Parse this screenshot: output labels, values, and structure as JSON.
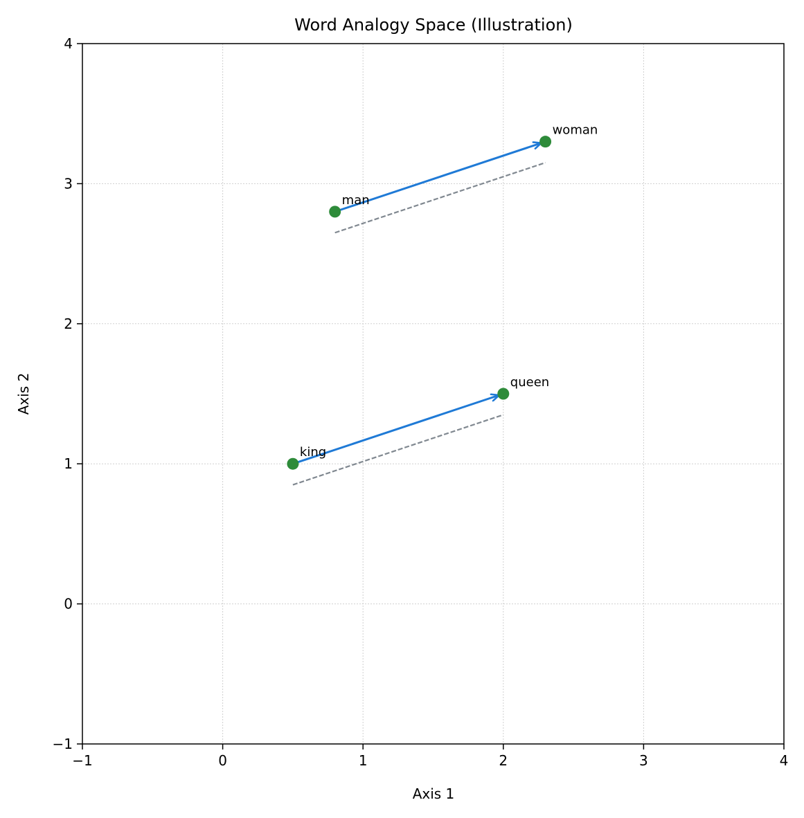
{
  "chart_data": {
    "type": "scatter",
    "title": "Word Analogy Space (Illustration)",
    "xlabel": "Axis 1",
    "ylabel": "Axis 2",
    "xlim": [
      -1,
      4
    ],
    "ylim": [
      -1,
      4
    ],
    "x_ticks": [
      -1,
      0,
      1,
      2,
      3,
      4
    ],
    "y_ticks": [
      -1,
      0,
      1,
      2,
      3,
      4
    ],
    "x_tick_labels": [
      "−1",
      "0",
      "1",
      "2",
      "3",
      "4"
    ],
    "y_tick_labels": [
      "−1",
      "0",
      "1",
      "2",
      "3",
      "4"
    ],
    "grid": true,
    "points": [
      {
        "label": "king",
        "x": 0.5,
        "y": 1.0
      },
      {
        "label": "queen",
        "x": 2.0,
        "y": 1.5
      },
      {
        "label": "man",
        "x": 0.8,
        "y": 2.8
      },
      {
        "label": "woman",
        "x": 2.3,
        "y": 3.3
      }
    ],
    "arrows": [
      {
        "from": [
          0.5,
          1.0
        ],
        "to": [
          2.0,
          1.5
        ]
      },
      {
        "from": [
          0.8,
          2.8
        ],
        "to": [
          2.3,
          3.3
        ]
      }
    ],
    "dashed_lines": [
      {
        "from": [
          0.5,
          0.85
        ],
        "to": [
          2.0,
          1.35
        ]
      },
      {
        "from": [
          0.8,
          2.65
        ],
        "to": [
          2.3,
          3.15
        ]
      }
    ],
    "colors": {
      "points": "#2e8b3a",
      "arrows": "#1f7ad6",
      "dashed": "#808890",
      "grid": "#d0d0d0",
      "axes": "#000000"
    }
  }
}
